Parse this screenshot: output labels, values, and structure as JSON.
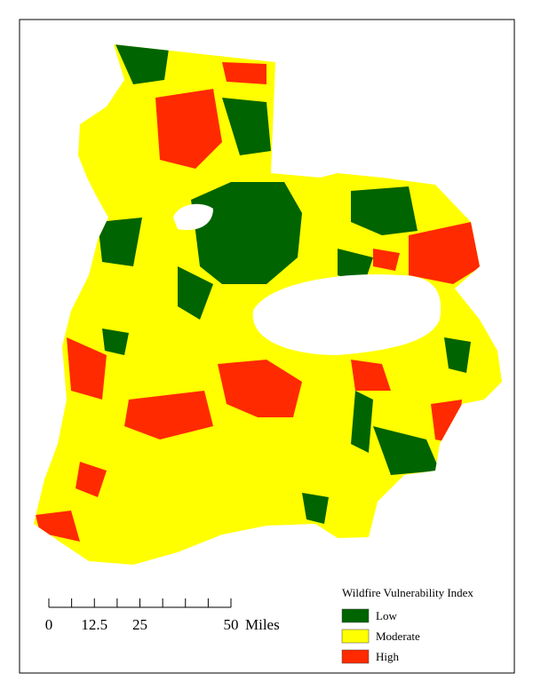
{
  "legend": {
    "title": "Wildfire Vulnerability Index",
    "items": [
      {
        "label": "Low",
        "color": "#006400"
      },
      {
        "label": "Moderate",
        "color": "#ffff00"
      },
      {
        "label": "High",
        "color": "#ff2a00"
      }
    ]
  },
  "scale_bar": {
    "labels": [
      "0",
      "12.5",
      "25",
      "50"
    ],
    "unit": "Miles"
  }
}
